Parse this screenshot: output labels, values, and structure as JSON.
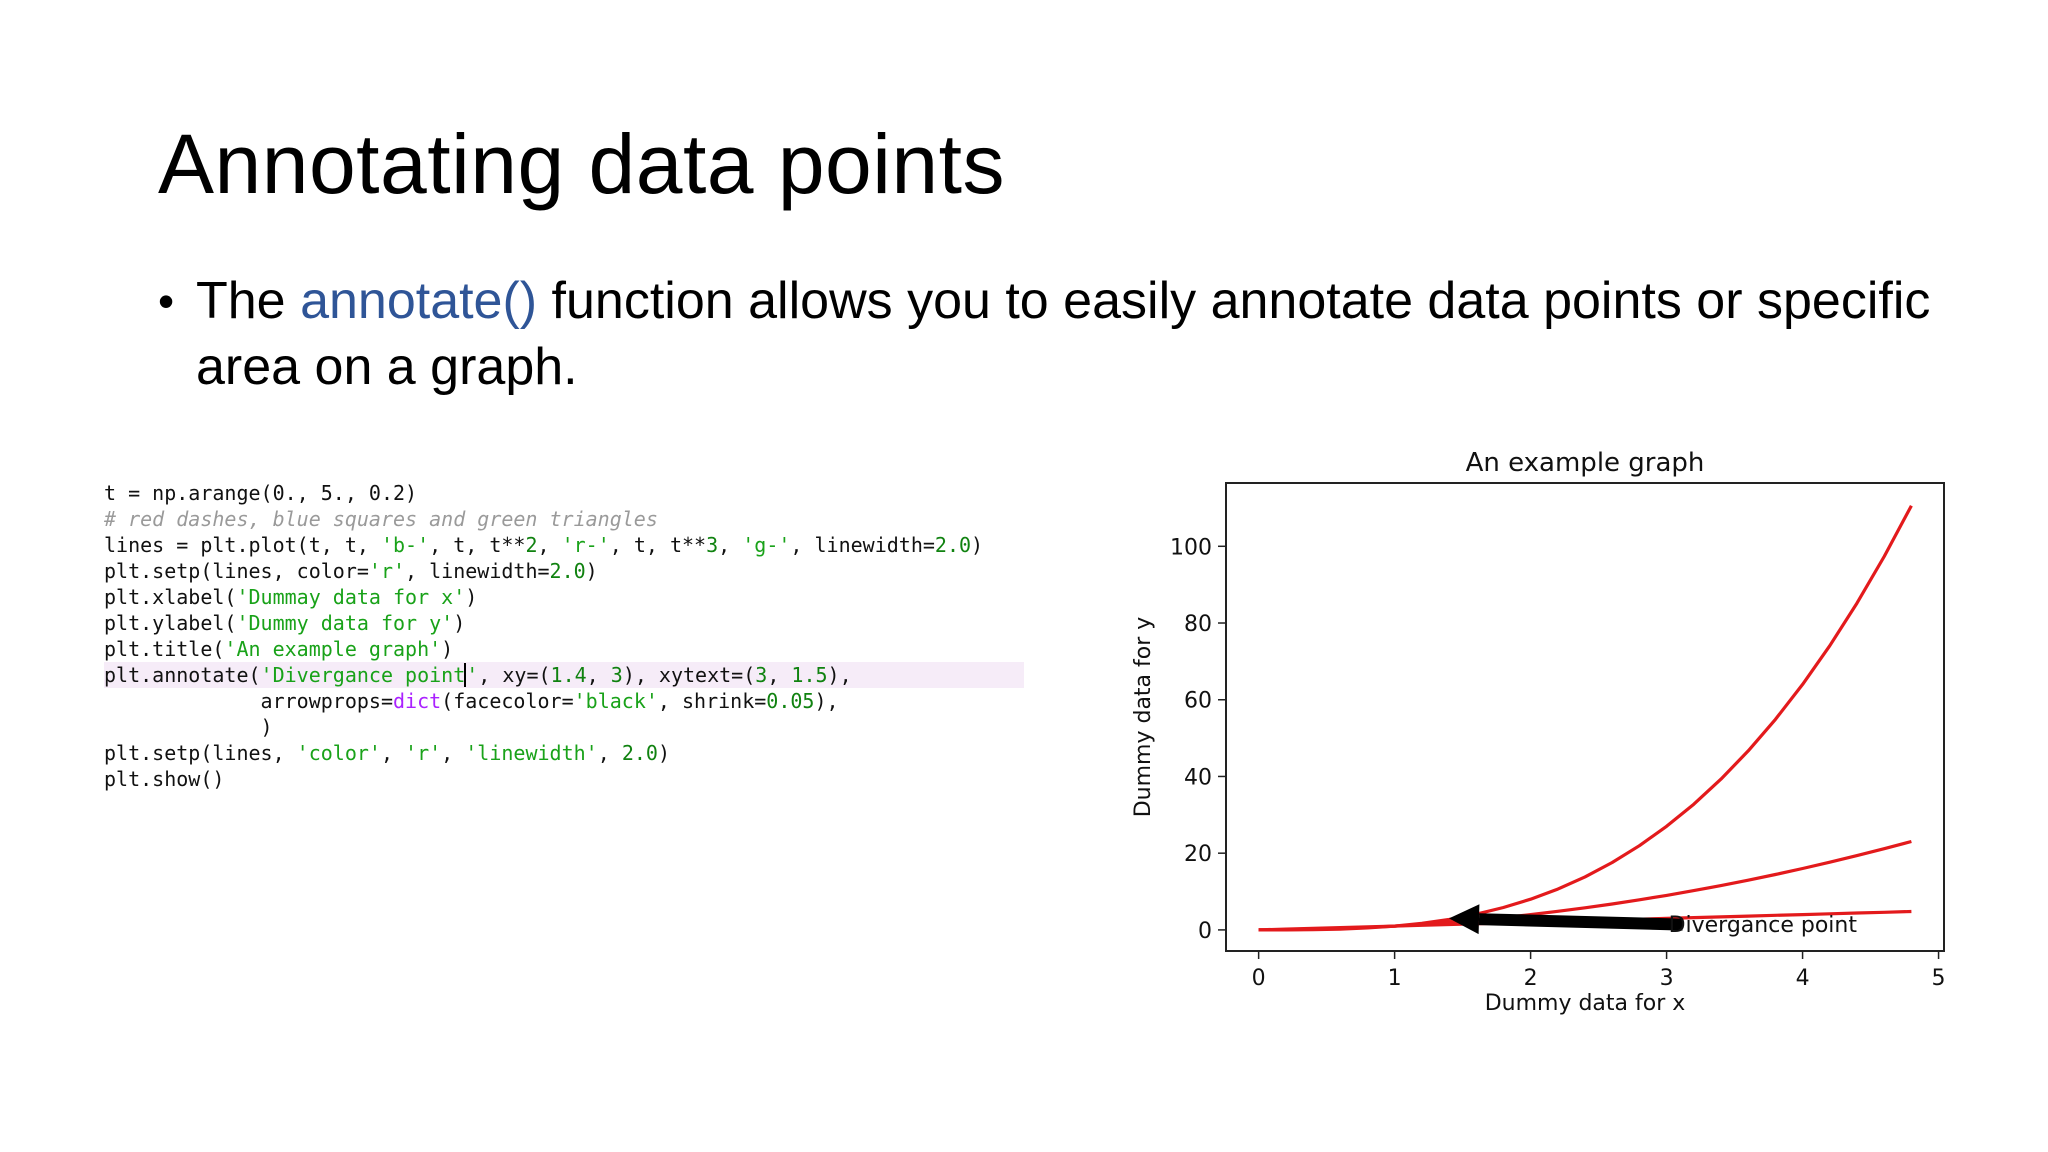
{
  "slide": {
    "title": "Annotating data points",
    "bullet": {
      "text_before": "The ",
      "function_name": "annotate()",
      "text_after": " function allows you to easily annotate data points or specific area on a graph."
    },
    "colors": {
      "function_name": "#2f5597",
      "curve": "#e31a1c",
      "arrow": "#000000"
    }
  },
  "code": {
    "l1": "t = np.arange(0., 5., 0.2)",
    "l2": "# red dashes, blue squares and green triangles",
    "l3": {
      "a": "lines = plt.plot(t, t, ",
      "s1": "'b-'",
      "b": ", t, t**",
      "n1": "2",
      "c": ", ",
      "s2": "'r-'",
      "d": ", t, t**",
      "n2": "3",
      "e": ", ",
      "s3": "'g-'",
      "f": ", linewidth=",
      "n3": "2.0",
      "g": ")"
    },
    "l4": {
      "a": "plt.setp(lines, color=",
      "s1": "'r'",
      "b": ", linewidth=",
      "n1": "2.0",
      "c": ")"
    },
    "l5": {
      "a": "plt.xlabel(",
      "s1": "'Dummay data for x'",
      "b": ")"
    },
    "l6": {
      "a": "plt.ylabel(",
      "s1": "'Dummy data for y'",
      "b": ")"
    },
    "l7": {
      "a": "plt.title(",
      "s1": "'An example graph'",
      "b": ")"
    },
    "l8": {
      "a": "plt.annotate(",
      "s1a": "'Divergance point",
      "s1b": "'",
      "b": ", xy=(",
      "n1": "1.4",
      "c": ", ",
      "n2": "3",
      "d": "), xytext=(",
      "n3": "3",
      "e": ", ",
      "n4": "1.5",
      "f": "),"
    },
    "l9": {
      "a": "             arrowprops=",
      "k1": "dict",
      "b": "(facecolor=",
      "s1": "'black'",
      "c": ", shrink=",
      "n1": "0.05",
      "d": "),"
    },
    "l10": "             )",
    "l11": {
      "a": "plt.setp(lines, ",
      "s1": "'color'",
      "b": ", ",
      "s2": "'r'",
      "c": ", ",
      "s3": "'linewidth'",
      "d": ", ",
      "n1": "2.0",
      "e": ")"
    },
    "l12": "plt.show()"
  },
  "chart_data": {
    "type": "line",
    "title": "An example graph",
    "xlabel": "Dummy data for x",
    "ylabel": "Dummy data for y",
    "xlim": [
      -0.24,
      5.04
    ],
    "ylim": [
      -5.5,
      116.5
    ],
    "xticks": [
      0,
      1,
      2,
      3,
      4,
      5
    ],
    "yticks": [
      0,
      20,
      40,
      60,
      80,
      100
    ],
    "grid": false,
    "x": [
      0,
      0.2,
      0.4,
      0.6,
      0.8,
      1.0,
      1.2,
      1.4,
      1.6,
      1.8,
      2.0,
      2.2,
      2.4,
      2.6,
      2.8,
      3.0,
      3.2,
      3.4,
      3.6,
      3.8,
      4.0,
      4.2,
      4.4,
      4.6,
      4.8
    ],
    "series": [
      {
        "values": [
          0,
          0.2,
          0.4,
          0.6,
          0.8,
          1.0,
          1.2,
          1.4,
          1.6,
          1.8,
          2.0,
          2.2,
          2.4,
          2.6,
          2.8,
          3.0,
          3.2,
          3.4,
          3.6,
          3.8,
          4.0,
          4.2,
          4.4,
          4.6,
          4.8
        ]
      },
      {
        "values": [
          0,
          0.04,
          0.16,
          0.36,
          0.64,
          1.0,
          1.44,
          1.96,
          2.56,
          3.24,
          4.0,
          4.84,
          5.76,
          6.76,
          7.84,
          9.0,
          10.24,
          11.56,
          12.96,
          14.44,
          16.0,
          17.64,
          19.36,
          21.16,
          23.04
        ]
      },
      {
        "values": [
          0,
          0.008,
          0.064,
          0.216,
          0.512,
          1.0,
          1.728,
          2.744,
          4.096,
          5.832,
          8.0,
          10.648,
          13.824,
          17.576,
          21.952,
          27.0,
          32.768,
          39.304,
          46.656,
          54.872,
          64.0,
          74.088,
          85.184,
          97.336,
          110.592
        ]
      }
    ],
    "annotation": {
      "text": "Divergance point",
      "xy": [
        1.4,
        3
      ],
      "xytext": [
        3,
        1.5
      ]
    }
  }
}
